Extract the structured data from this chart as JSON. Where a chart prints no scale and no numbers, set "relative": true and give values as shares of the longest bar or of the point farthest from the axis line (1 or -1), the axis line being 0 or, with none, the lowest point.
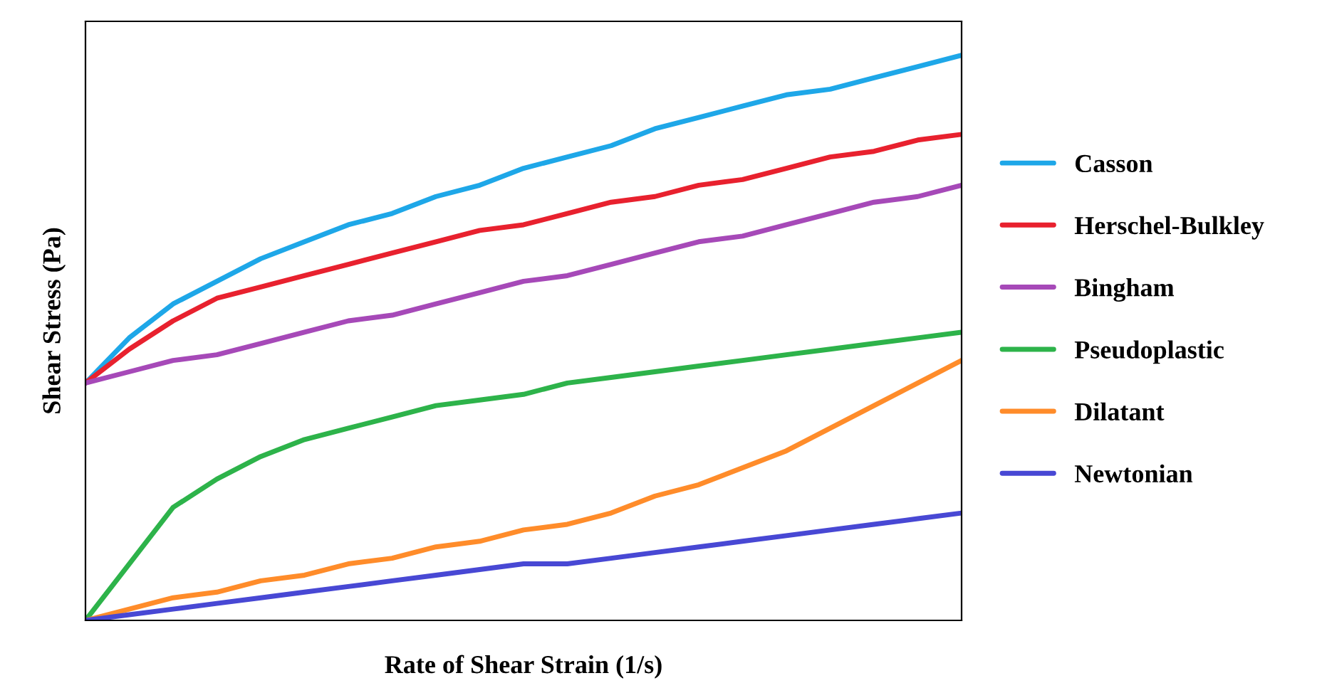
{
  "chart_data": {
    "type": "line",
    "relative": true,
    "xlabel": "Rate of Shear Strain (1/s)",
    "ylabel": "Shear Stress (Pa)",
    "legend": "right",
    "marker": "none",
    "line_style": "solid",
    "categories": [
      null,
      null,
      null,
      null,
      null,
      null,
      null,
      null,
      null,
      null,
      null,
      null,
      null,
      null,
      null,
      null,
      null,
      null,
      null,
      null,
      null
    ],
    "series": [
      {
        "name": "Casson",
        "color": "#1ea7e8",
        "values": [
          0.42,
          0.5,
          0.56,
          0.6,
          0.64,
          0.67,
          0.7,
          0.72,
          0.75,
          0.77,
          0.8,
          0.82,
          0.84,
          0.87,
          0.89,
          0.91,
          0.93,
          0.94,
          0.96,
          0.98,
          1
        ]
      },
      {
        "name": "Herschel-Bulkley",
        "color": "#e8212e",
        "values": [
          0.42,
          0.48,
          0.53,
          0.57,
          0.59,
          0.61,
          0.63,
          0.65,
          0.67,
          0.69,
          0.7,
          0.72,
          0.74,
          0.75,
          0.77,
          0.78,
          0.8,
          0.82,
          0.83,
          0.85,
          0.86
        ]
      },
      {
        "name": "Bingham",
        "color": "#a649b8",
        "values": [
          0.42,
          0.44,
          0.46,
          0.47,
          0.49,
          0.51,
          0.53,
          0.54,
          0.56,
          0.58,
          0.6,
          0.61,
          0.63,
          0.65,
          0.67,
          0.68,
          0.7,
          0.72,
          0.74,
          0.75,
          0.77
        ]
      },
      {
        "name": "Pseudoplastic",
        "color": "#2db34a",
        "values": [
          0,
          0.1,
          0.2,
          0.25,
          0.29,
          0.32,
          0.34,
          0.36,
          0.38,
          0.39,
          0.4,
          0.42,
          0.43,
          0.44,
          0.45,
          0.46,
          0.47,
          0.48,
          0.49,
          0.5,
          0.51
        ]
      },
      {
        "name": "Dilatant",
        "color": "#ff8c2a",
        "values": [
          0,
          0.02,
          0.04,
          0.05,
          0.07,
          0.08,
          0.1,
          0.11,
          0.13,
          0.14,
          0.16,
          0.17,
          0.19,
          0.22,
          0.24,
          0.27,
          0.3,
          0.34,
          0.38,
          0.42,
          0.46
        ]
      },
      {
        "name": "Newtonian",
        "color": "#4848d4",
        "values": [
          0,
          0.01,
          0.02,
          0.03,
          0.04,
          0.05,
          0.06,
          0.07,
          0.08,
          0.09,
          0.1,
          0.1,
          0.11,
          0.12,
          0.13,
          0.14,
          0.15,
          0.16,
          0.17,
          0.18,
          0.19
        ]
      }
    ]
  }
}
